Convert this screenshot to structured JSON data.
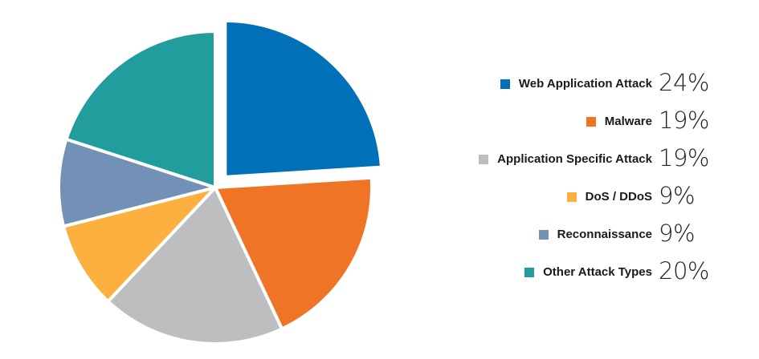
{
  "chart_data": {
    "type": "pie",
    "exploded_slice": "Web Application Attack",
    "legend_placement": "right",
    "slices": [
      {
        "label": "Web Application Attack",
        "value": 24,
        "value_label": "24%",
        "color": "#0070b8"
      },
      {
        "label": "Malware",
        "value": 19,
        "value_label": "19%",
        "color": "#f07425"
      },
      {
        "label": "Application Specific Attack",
        "value": 19,
        "value_label": "19%",
        "color": "#bcbec0"
      },
      {
        "label": "DoS / DDoS",
        "value": 9,
        "value_label": "9%",
        "color": "#fbb040"
      },
      {
        "label": "Reconnaissance",
        "value": 9,
        "value_label": "9%",
        "color": "#7391b6"
      },
      {
        "label": "Other Attack Types",
        "value": 20,
        "value_label": "20%",
        "color": "#229d9d"
      }
    ]
  }
}
